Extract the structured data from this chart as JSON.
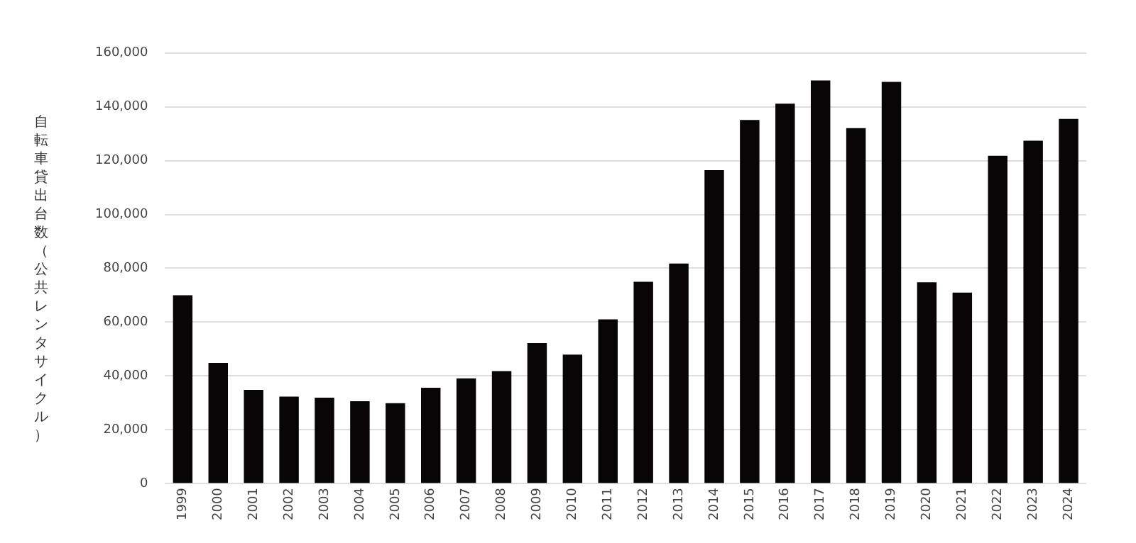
{
  "chart_data": {
    "type": "bar",
    "ylabel": "自転車貸出台数（公共レンタサイクル）",
    "categories": [
      "1999",
      "2000",
      "2001",
      "2002",
      "2003",
      "2004",
      "2005",
      "2006",
      "2007",
      "2008",
      "2009",
      "2010",
      "2011",
      "2012",
      "2013",
      "2014",
      "2015",
      "2016",
      "2017",
      "2018",
      "2019",
      "2020",
      "2021",
      "2022",
      "2023",
      "2024"
    ],
    "values": [
      70000,
      44800,
      34800,
      32300,
      31900,
      30600,
      29900,
      35600,
      39100,
      41800,
      52200,
      47900,
      61000,
      75000,
      81800,
      116500,
      135100,
      141200,
      149800,
      132100,
      149300,
      74800,
      71000,
      121800,
      127400,
      135500
    ],
    "color": "#070505",
    "ylim": [
      0,
      160000
    ],
    "yticks": [
      {
        "value": 0,
        "label": "0"
      },
      {
        "value": 20000,
        "label": "20,000"
      },
      {
        "value": 40000,
        "label": "40,000"
      },
      {
        "value": 60000,
        "label": "60,000"
      },
      {
        "value": 80000,
        "label": "80,000"
      },
      {
        "value": 100000,
        "label": "100,000"
      },
      {
        "value": 120000,
        "label": "120,000"
      },
      {
        "value": 140000,
        "label": "140,000"
      },
      {
        "value": 160000,
        "label": "160,000"
      }
    ],
    "grid": "y",
    "legend": false
  }
}
